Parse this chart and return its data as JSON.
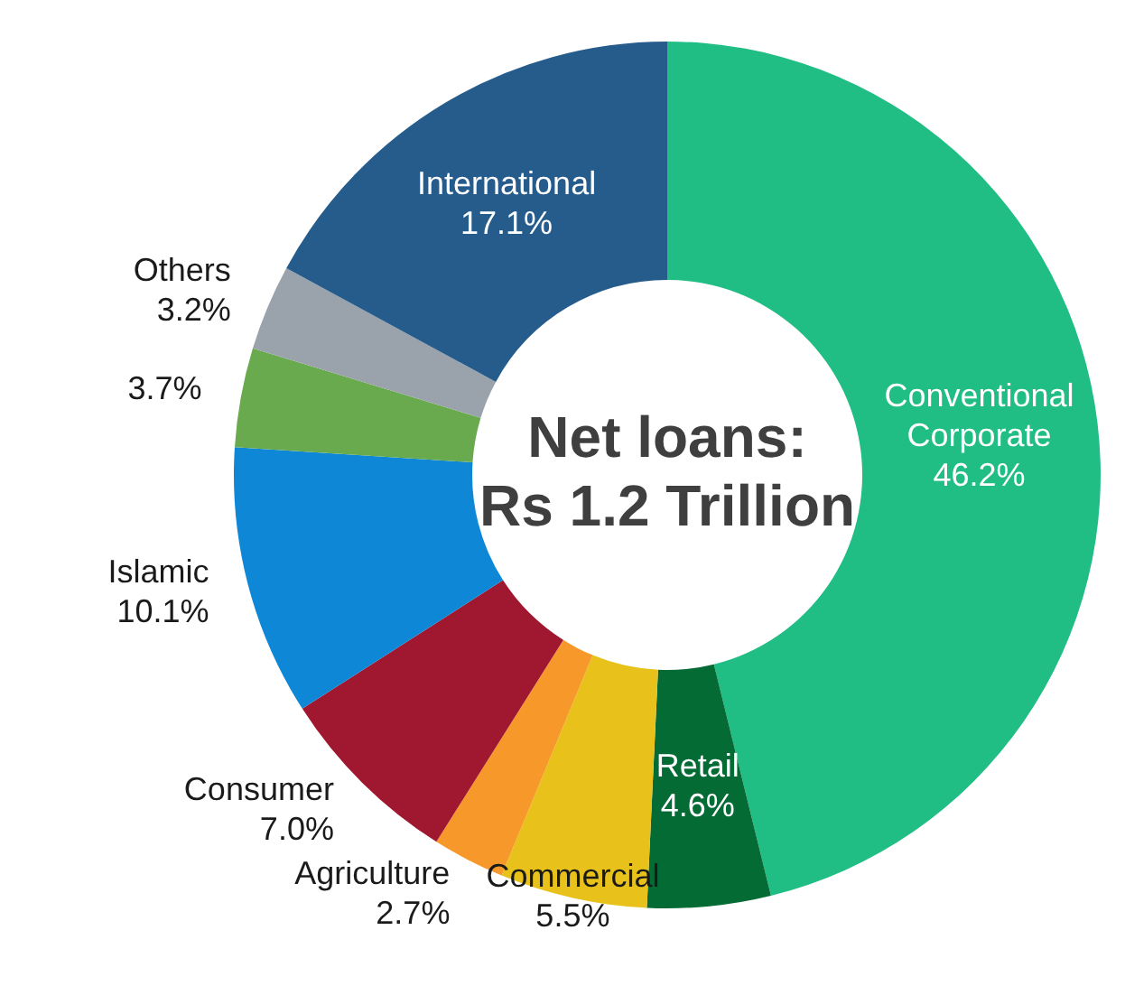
{
  "chart_data": {
    "type": "donut",
    "title": "Net loans:\nRs 1.2 Trillion",
    "categories": [
      "Conventional Corporate",
      "Retail",
      "Commercial",
      "Agriculture",
      "Consumer",
      "Islamic",
      null,
      "Others",
      "International"
    ],
    "values": [
      46.2,
      4.6,
      5.5,
      2.7,
      7.0,
      10.1,
      3.7,
      3.2,
      17.1
    ],
    "value_labels": [
      "46.2%",
      "4.6%",
      "5.5%",
      "2.7%",
      "7.0%",
      "10.1%",
      "3.7%",
      "3.2%",
      "17.1%"
    ],
    "colors": [
      "#20bd85",
      "#056b35",
      "#e8c21a",
      "#f7982a",
      "#a01830",
      "#0e88d6",
      "#6aaa4f",
      "#9aa3ab",
      "#255c8c"
    ],
    "legend": false
  }
}
